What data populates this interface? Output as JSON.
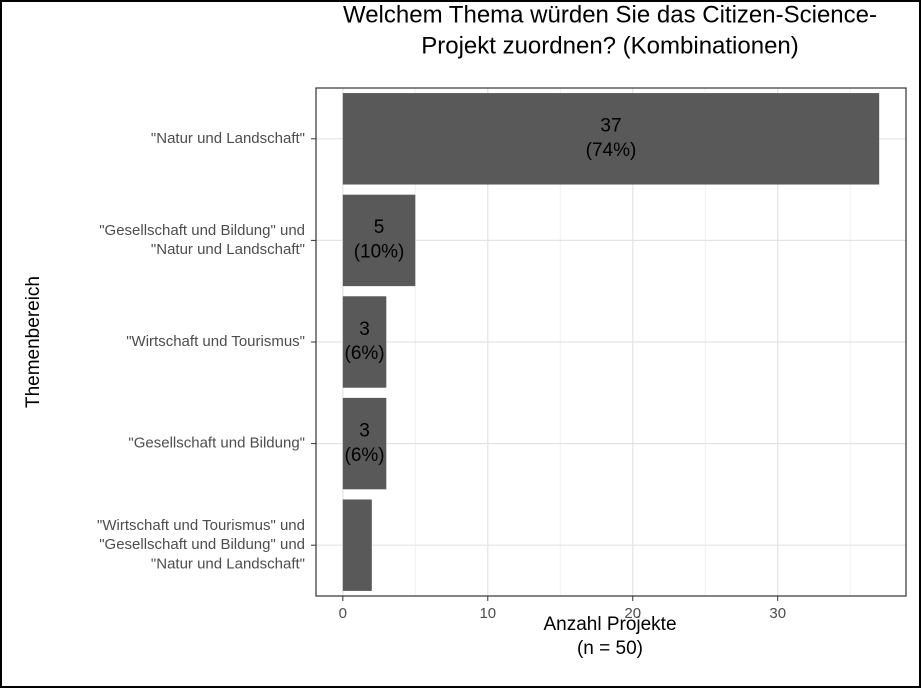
{
  "chart_data": {
    "type": "bar",
    "orientation": "horizontal",
    "title": "Welchem Thema würden Sie das Citizen-Science-\nProjekt zuordnen? (Kombinationen)",
    "categories": [
      "\"Natur und Landschaft\"",
      "\"Gesellschaft und Bildung\" und\n\"Natur und Landschaft\"",
      "\"Wirtschaft und Tourismus\"",
      "\"Gesellschaft und Bildung\"",
      "\"Wirtschaft und Tourismus\" und\n\"Gesellschaft und Bildung\" und\n\"Natur und Landschaft\""
    ],
    "values": [
      37,
      5,
      3,
      3,
      2
    ],
    "value_labels": [
      "37\n(74%)",
      "5\n(10%)",
      "3\n(6%)",
      "3\n(6%)",
      null
    ],
    "color": "#595959",
    "x_label": "Anzahl Projekte\n(n = 50)",
    "y_label": "Themenbereich",
    "xlim": [
      -1.85,
      38.85
    ],
    "xticks": [
      0,
      10,
      20,
      30
    ],
    "xminorticks": [
      5,
      15,
      25,
      35
    ],
    "grid": true
  }
}
